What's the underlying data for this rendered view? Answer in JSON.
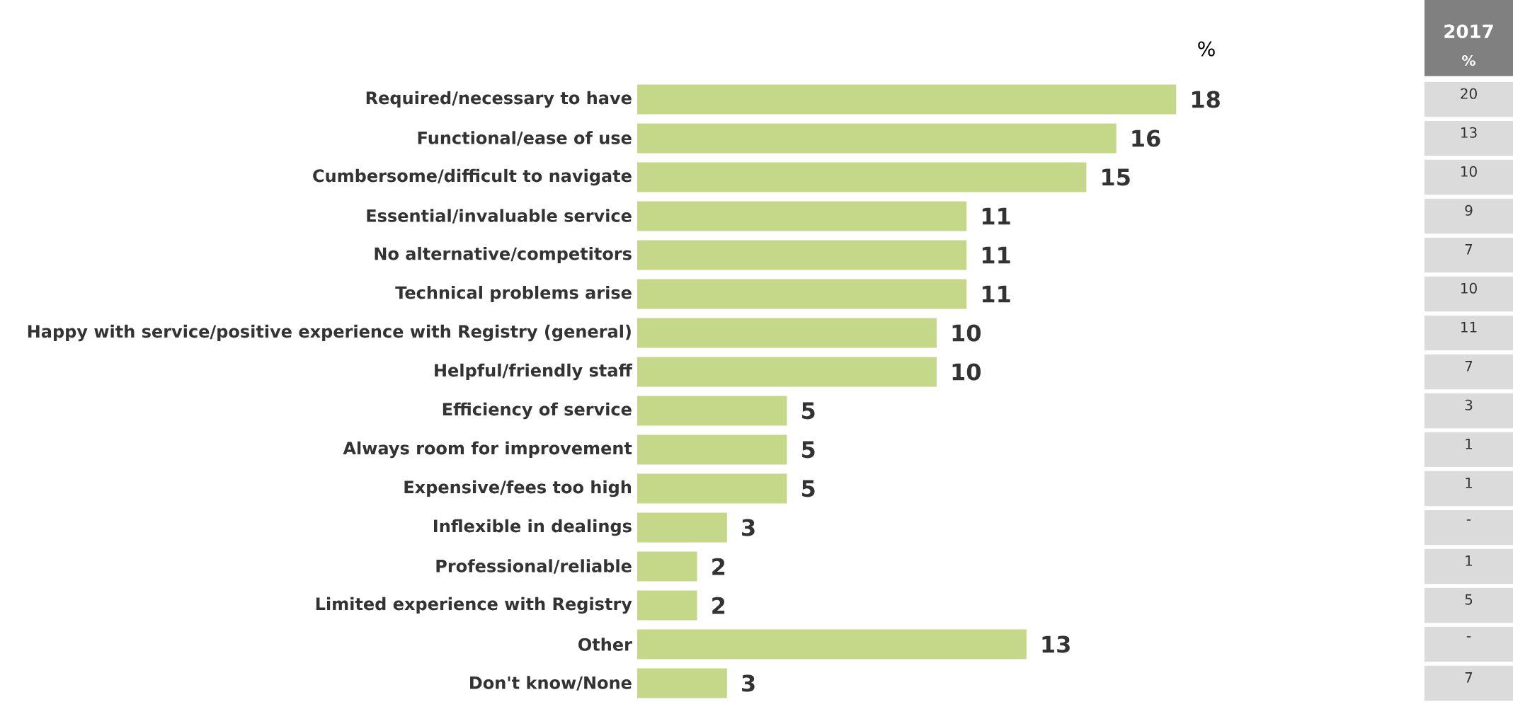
{
  "chart_data": {
    "type": "bar",
    "orientation": "horizontal",
    "xlabel": "%",
    "categories": [
      "Required/necessary to have",
      "Functional/ease of use",
      "Cumbersome/difficult to navigate",
      "Essential/invaluable service",
      "No alternative/competitors",
      "Technical problems arise",
      "Happy with service/positive experience with Registry (general)",
      "Helpful/friendly staff",
      "Efficiency of service",
      "Always room for improvement",
      "Expensive/fees too high",
      "Inflexible in dealings",
      "Professional/reliable",
      "Limited experience with Registry",
      "Other",
      "Don't know/None"
    ],
    "values": [
      18,
      16,
      15,
      11,
      11,
      11,
      10,
      10,
      5,
      5,
      5,
      3,
      2,
      2,
      13,
      3
    ],
    "color": "#c5d789",
    "data_labels": true,
    "annotations": [
      "2017",
      "%",
      "20",
      "13",
      "10",
      "9",
      "7",
      "10",
      "11",
      "7",
      "3",
      "1",
      "1",
      "-",
      "1",
      "5",
      "-",
      "7"
    ]
  }
}
